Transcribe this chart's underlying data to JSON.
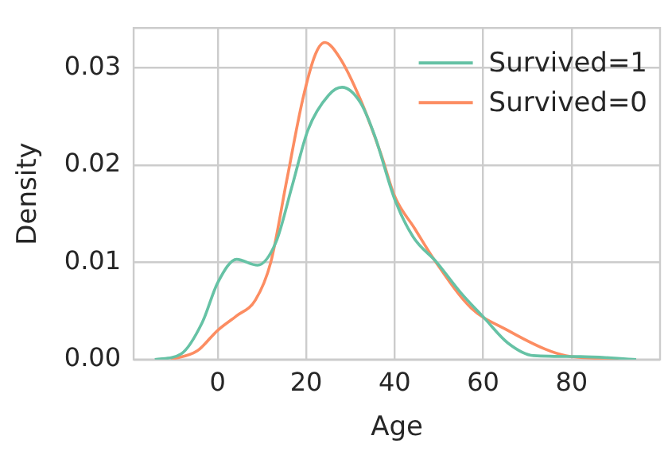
{
  "chart_data": {
    "type": "line",
    "xlabel": "Age",
    "ylabel": "Density",
    "xlim": [
      -19,
      100
    ],
    "ylim": [
      0,
      0.0341
    ],
    "xticks": [
      0,
      20,
      40,
      60,
      80
    ],
    "yticks": [
      {
        "value": 0,
        "label": "0.00"
      },
      {
        "value": 0.01,
        "label": "0.01"
      },
      {
        "value": 0.02,
        "label": "0.02"
      },
      {
        "value": 0.03,
        "label": "0.03"
      }
    ],
    "grid": true,
    "legend": "top right",
    "marker": "none",
    "line_style": "solid",
    "series": [
      {
        "name": "Survived=1",
        "color": "#66c2a5",
        "x": [
          -14.2,
          -8.2,
          -3.5,
          0,
          4.3,
          9,
          13.2,
          16.8,
          20.4,
          25.1,
          28.1,
          32.3,
          35.5,
          40,
          44.2,
          49.5,
          54.9,
          60.2,
          65.6,
          71.4,
          82,
          94.6
        ],
        "values": [
          0,
          0.0006,
          0.0038,
          0.0079,
          0.0103,
          0.0097,
          0.0121,
          0.0178,
          0.0236,
          0.0272,
          0.028,
          0.0264,
          0.023,
          0.0165,
          0.0126,
          0.01,
          0.0069,
          0.0043,
          0.0017,
          0.0004,
          0.0003,
          0
        ]
      },
      {
        "name": "Survived=0",
        "color": "#fc8d62",
        "x": [
          -10.6,
          -4.6,
          0,
          4.3,
          8.5,
          12,
          15.6,
          19.2,
          22.1,
          24.2,
          27.5,
          32.3,
          37,
          40,
          44.5,
          48.9,
          57.3,
          65.6,
          73.9,
          78.7,
          87,
          90.6
        ],
        "values": [
          0,
          0.0009,
          0.003,
          0.0045,
          0.0061,
          0.01,
          0.0184,
          0.0267,
          0.0314,
          0.0326,
          0.0311,
          0.0267,
          0.021,
          0.0168,
          0.0135,
          0.0103,
          0.0053,
          0.003,
          0.0011,
          0.0004,
          0.0001,
          0
        ]
      }
    ]
  }
}
